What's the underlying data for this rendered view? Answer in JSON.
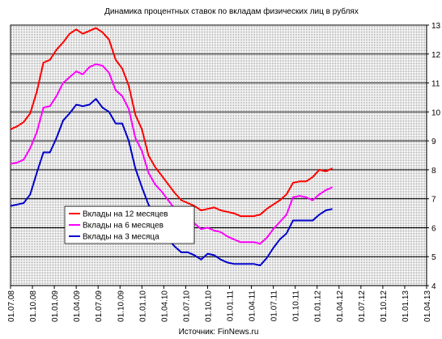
{
  "chart_data": {
    "type": "line",
    "title": "Динамика процентных ставок по вкладам физических лиц в рублях",
    "source": "Источник: FinNews.ru",
    "xlabel": "",
    "ylabel": "",
    "ylim": [
      4,
      13
    ],
    "yticks": [
      4,
      5,
      6,
      7,
      8,
      9,
      10,
      11,
      12,
      13
    ],
    "x_tick_labels": [
      "01.07.08",
      "01.10.08",
      "01.01.09",
      "01.04.09",
      "01.07.09",
      "01.10.09",
      "01.01.10",
      "01.04.10",
      "01.07.10",
      "01.10.10",
      "01.01.11",
      "01.04.11",
      "01.07.11",
      "01.10.11",
      "01.01.12",
      "01.04.12",
      "01.07.12",
      "01.10.12",
      "01.01.13",
      "01.04.13"
    ],
    "x_unit": "quarter index (0 = 01.07.08)",
    "grid": true,
    "legend_position": "center-left",
    "series": [
      {
        "name": "Вклады на 12 месяцев",
        "color": "#ff0000",
        "points": [
          [
            0.0,
            9.4
          ],
          [
            0.3,
            9.5
          ],
          [
            0.6,
            9.65
          ],
          [
            0.9,
            9.95
          ],
          [
            1.2,
            10.7
          ],
          [
            1.5,
            11.7
          ],
          [
            1.8,
            11.8
          ],
          [
            2.1,
            12.15
          ],
          [
            2.4,
            12.4
          ],
          [
            2.7,
            12.7
          ],
          [
            3.0,
            12.85
          ],
          [
            3.3,
            12.7
          ],
          [
            3.6,
            12.8
          ],
          [
            3.9,
            12.9
          ],
          [
            4.2,
            12.75
          ],
          [
            4.5,
            12.5
          ],
          [
            4.8,
            11.8
          ],
          [
            5.1,
            11.5
          ],
          [
            5.4,
            10.9
          ],
          [
            5.7,
            9.9
          ],
          [
            6.0,
            9.4
          ],
          [
            6.3,
            8.5
          ],
          [
            6.6,
            8.1
          ],
          [
            6.9,
            7.8
          ],
          [
            7.2,
            7.5
          ],
          [
            7.5,
            7.2
          ],
          [
            7.8,
            6.95
          ],
          [
            8.1,
            6.85
          ],
          [
            8.4,
            6.75
          ],
          [
            8.7,
            6.6
          ],
          [
            9.0,
            6.65
          ],
          [
            9.3,
            6.7
          ],
          [
            9.6,
            6.6
          ],
          [
            9.9,
            6.55
          ],
          [
            10.2,
            6.5
          ],
          [
            10.5,
            6.4
          ],
          [
            10.8,
            6.4
          ],
          [
            11.1,
            6.4
          ],
          [
            11.4,
            6.45
          ],
          [
            11.7,
            6.65
          ],
          [
            12.0,
            6.8
          ],
          [
            12.3,
            6.95
          ],
          [
            12.6,
            7.15
          ],
          [
            12.9,
            7.55
          ],
          [
            13.2,
            7.6
          ],
          [
            13.5,
            7.6
          ],
          [
            13.8,
            7.75
          ],
          [
            14.1,
            8.0
          ],
          [
            14.4,
            7.95
          ],
          [
            14.7,
            8.05
          ]
        ]
      },
      {
        "name": "Вклады на 6 месяцев",
        "color": "#ff00ff",
        "points": [
          [
            0.0,
            8.2
          ],
          [
            0.3,
            8.25
          ],
          [
            0.6,
            8.35
          ],
          [
            0.9,
            8.75
          ],
          [
            1.2,
            9.3
          ],
          [
            1.5,
            10.15
          ],
          [
            1.8,
            10.2
          ],
          [
            2.1,
            10.55
          ],
          [
            2.4,
            11.0
          ],
          [
            2.7,
            11.2
          ],
          [
            3.0,
            11.4
          ],
          [
            3.3,
            11.3
          ],
          [
            3.6,
            11.55
          ],
          [
            3.9,
            11.65
          ],
          [
            4.2,
            11.6
          ],
          [
            4.5,
            11.35
          ],
          [
            4.8,
            10.75
          ],
          [
            5.1,
            10.55
          ],
          [
            5.4,
            10.1
          ],
          [
            5.7,
            9.1
          ],
          [
            6.0,
            8.65
          ],
          [
            6.3,
            7.9
          ],
          [
            6.6,
            7.5
          ],
          [
            6.9,
            7.25
          ],
          [
            7.2,
            6.95
          ],
          [
            7.5,
            6.65
          ],
          [
            7.8,
            6.3
          ],
          [
            8.1,
            6.25
          ],
          [
            8.4,
            6.15
          ],
          [
            8.7,
            5.95
          ],
          [
            9.0,
            6.0
          ],
          [
            9.3,
            5.9
          ],
          [
            9.6,
            5.85
          ],
          [
            9.9,
            5.7
          ],
          [
            10.2,
            5.6
          ],
          [
            10.5,
            5.5
          ],
          [
            10.8,
            5.5
          ],
          [
            11.1,
            5.5
          ],
          [
            11.4,
            5.45
          ],
          [
            11.7,
            5.65
          ],
          [
            12.0,
            5.95
          ],
          [
            12.3,
            6.2
          ],
          [
            12.6,
            6.45
          ],
          [
            12.9,
            7.05
          ],
          [
            13.2,
            7.1
          ],
          [
            13.5,
            7.05
          ],
          [
            13.8,
            6.95
          ],
          [
            14.1,
            7.15
          ],
          [
            14.4,
            7.3
          ],
          [
            14.7,
            7.4
          ]
        ]
      },
      {
        "name": "Вклады на 3 месяца",
        "color": "#0000cc",
        "points": [
          [
            0.0,
            6.75
          ],
          [
            0.3,
            6.8
          ],
          [
            0.6,
            6.85
          ],
          [
            0.9,
            7.15
          ],
          [
            1.2,
            7.9
          ],
          [
            1.5,
            8.6
          ],
          [
            1.8,
            8.6
          ],
          [
            2.1,
            9.1
          ],
          [
            2.4,
            9.7
          ],
          [
            2.7,
            9.95
          ],
          [
            3.0,
            10.25
          ],
          [
            3.3,
            10.2
          ],
          [
            3.6,
            10.25
          ],
          [
            3.9,
            10.45
          ],
          [
            4.2,
            10.15
          ],
          [
            4.5,
            10.0
          ],
          [
            4.8,
            9.6
          ],
          [
            5.1,
            9.6
          ],
          [
            5.4,
            9.0
          ],
          [
            5.7,
            8.05
          ],
          [
            6.0,
            7.4
          ],
          [
            6.3,
            6.8
          ],
          [
            6.6,
            6.4
          ],
          [
            6.9,
            6.05
          ],
          [
            7.2,
            5.6
          ],
          [
            7.5,
            5.35
          ],
          [
            7.8,
            5.15
          ],
          [
            8.1,
            5.15
          ],
          [
            8.4,
            5.05
          ],
          [
            8.7,
            4.9
          ],
          [
            9.0,
            5.1
          ],
          [
            9.3,
            5.05
          ],
          [
            9.6,
            4.9
          ],
          [
            9.9,
            4.8
          ],
          [
            10.2,
            4.75
          ],
          [
            10.5,
            4.75
          ],
          [
            10.8,
            4.75
          ],
          [
            11.1,
            4.75
          ],
          [
            11.4,
            4.7
          ],
          [
            11.7,
            4.95
          ],
          [
            12.0,
            5.3
          ],
          [
            12.3,
            5.6
          ],
          [
            12.6,
            5.8
          ],
          [
            12.9,
            6.25
          ],
          [
            13.2,
            6.25
          ],
          [
            13.5,
            6.25
          ],
          [
            13.8,
            6.25
          ],
          [
            14.1,
            6.45
          ],
          [
            14.4,
            6.6
          ],
          [
            14.7,
            6.65
          ]
        ]
      }
    ]
  }
}
